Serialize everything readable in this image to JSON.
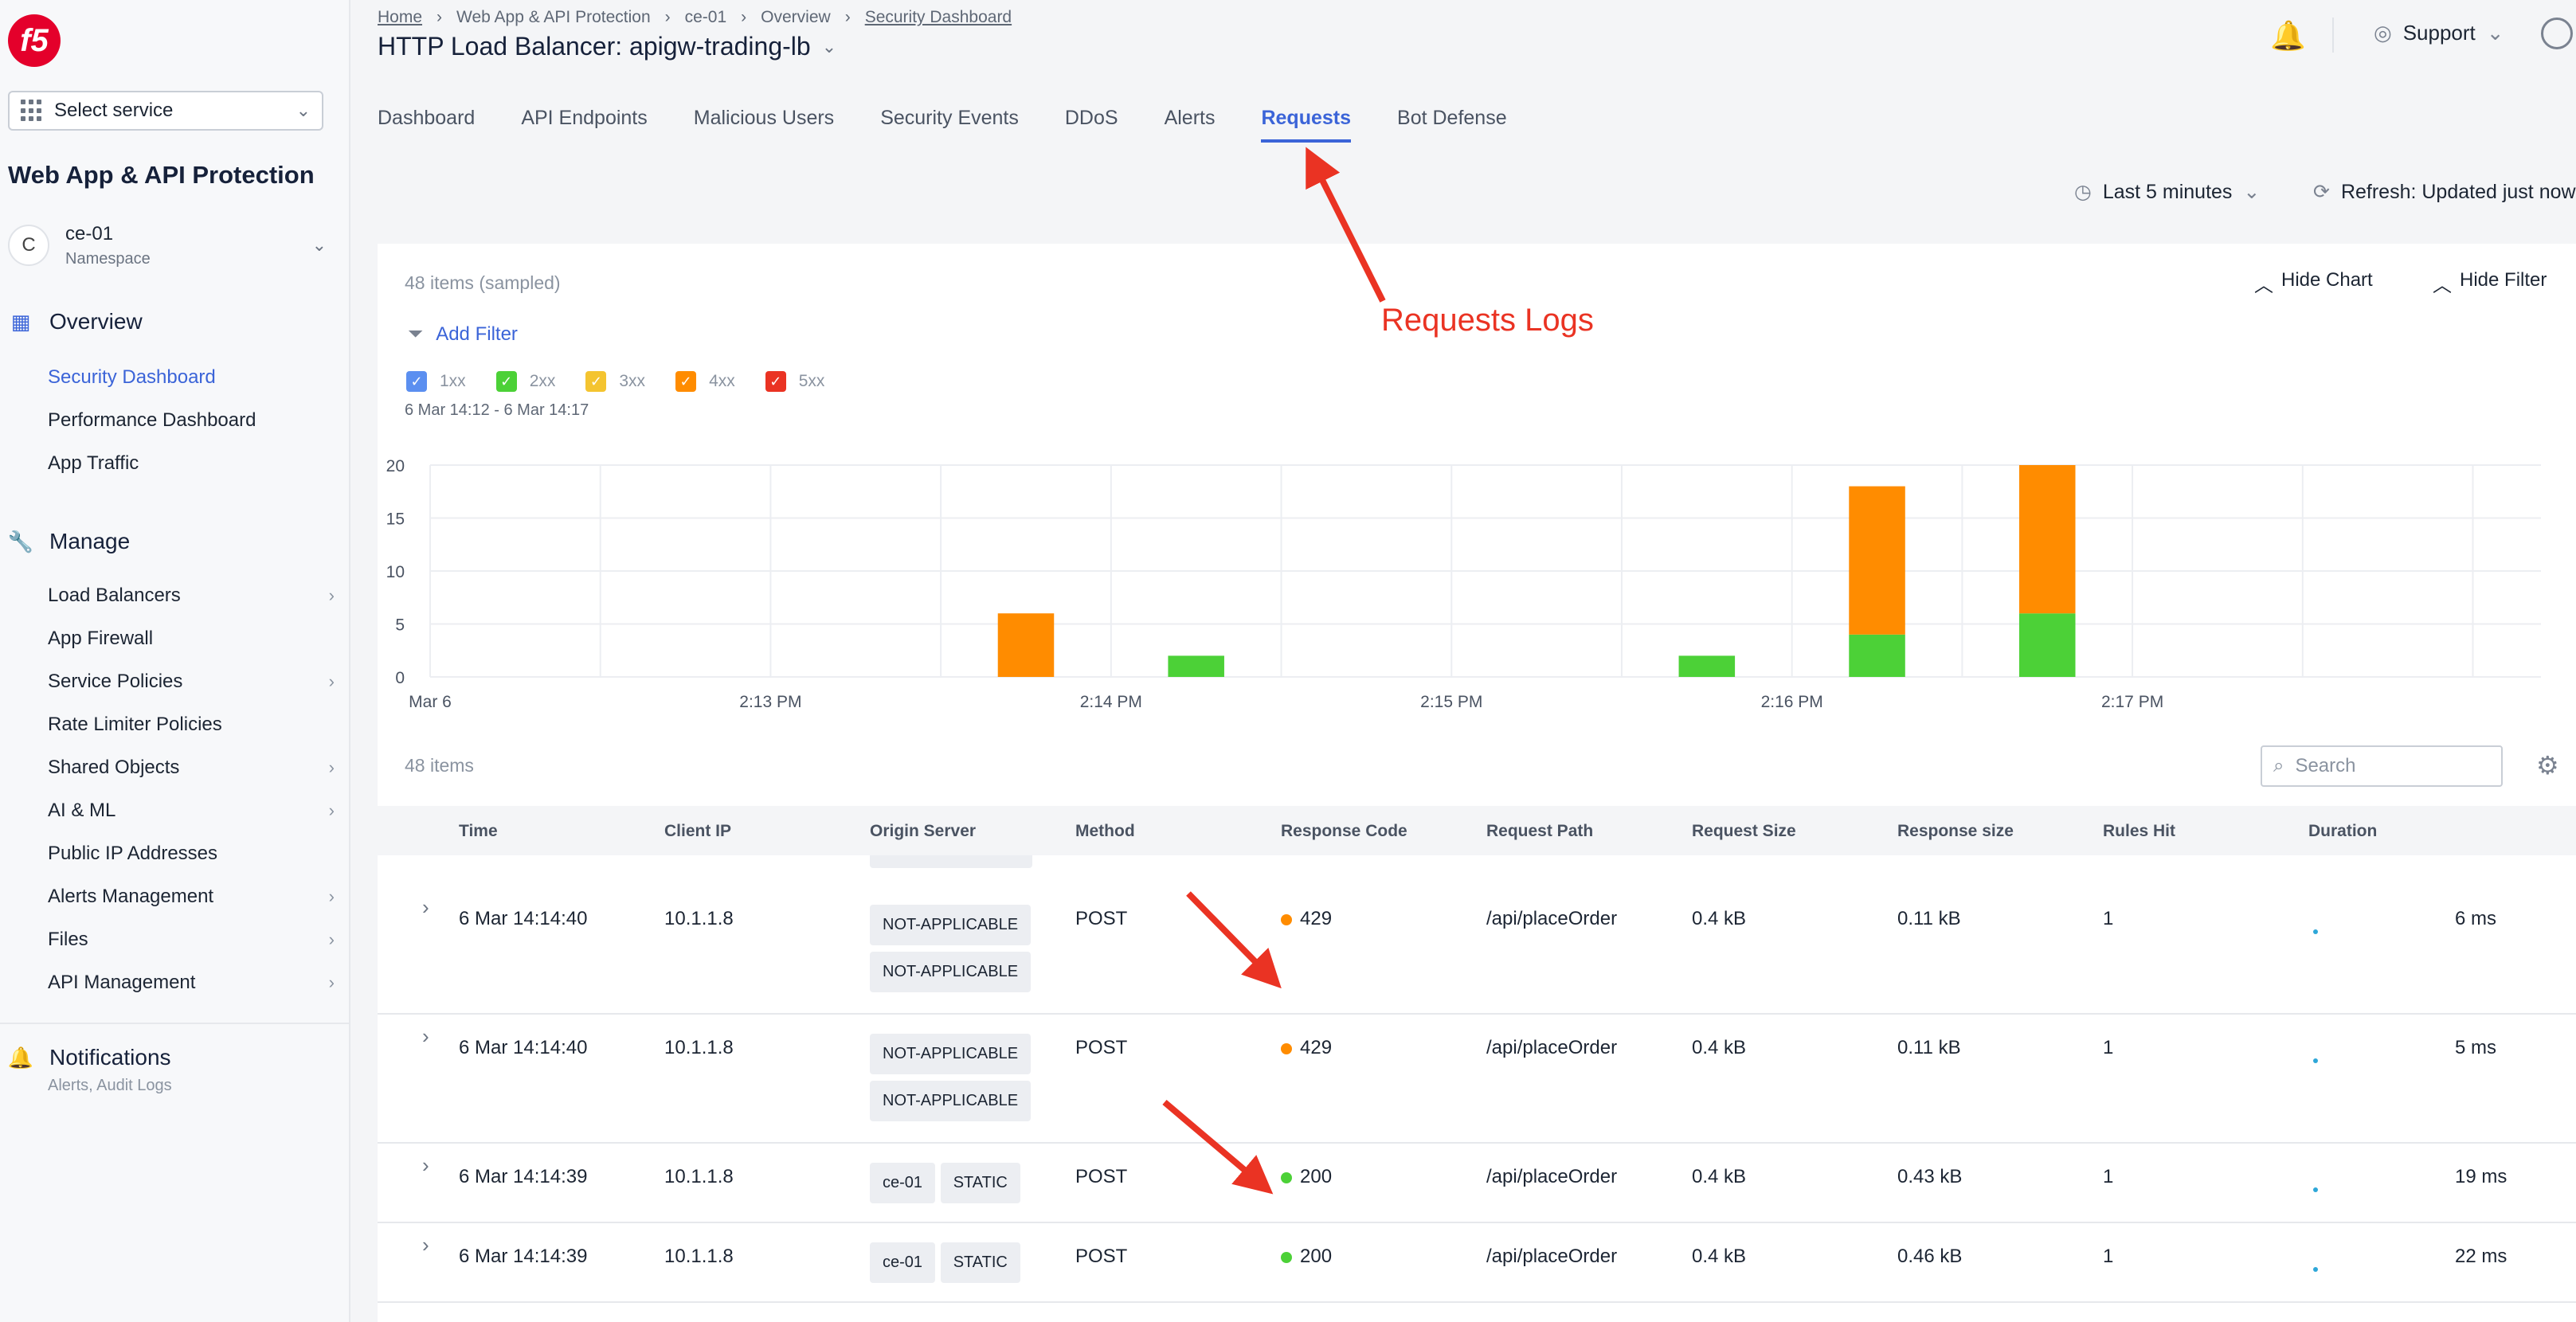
{
  "sidebar": {
    "logo": "f5",
    "select_service": "Select service",
    "app_title": "Web App & API Protection",
    "namespace": {
      "avatar": "C",
      "name": "ce-01",
      "label": "Namespace"
    },
    "overview": {
      "label": "Overview",
      "items": [
        "Security Dashboard",
        "Performance Dashboard",
        "App Traffic"
      ]
    },
    "manage": {
      "label": "Manage",
      "items": [
        "Load Balancers",
        "App Firewall",
        "Service Policies",
        "Rate Limiter Policies",
        "Shared Objects",
        "AI & ML",
        "Public IP Addresses",
        "Alerts Management",
        "Files",
        "API Management"
      ]
    },
    "notifications": {
      "label": "Notifications",
      "sub": "Alerts, Audit Logs"
    }
  },
  "header": {
    "breadcrumb": [
      "Home",
      "Web App & API Protection",
      "ce-01",
      "Overview",
      "Security Dashboard"
    ],
    "title": "HTTP Load Balancer: apigw-trading-lb",
    "support": "Support"
  },
  "tabs": [
    "Dashboard",
    "API Endpoints",
    "Malicious Users",
    "Security Events",
    "DDoS",
    "Alerts",
    "Requests",
    "Bot Defense"
  ],
  "active_tab": "Requests",
  "controls": {
    "time_range": "Last 5 minutes",
    "refresh": "Refresh: Updated just now"
  },
  "panel": {
    "sampled": "48 items (sampled)",
    "hide_chart": "Hide Chart",
    "hide_filter": "Hide Filter",
    "add_filter": "Add Filter",
    "legend": [
      {
        "label": "1xx",
        "color": "#5b8ff0"
      },
      {
        "label": "2xx",
        "color": "#4cd137"
      },
      {
        "label": "3xx",
        "color": "#f4c430"
      },
      {
        "label": "4xx",
        "color": "#ff8c00"
      },
      {
        "label": "5xx",
        "color": "#ea3323"
      }
    ],
    "date_range": "6 Mar 14:12 - 6 Mar 14:17",
    "items_count": "48 items",
    "search_placeholder": "Search"
  },
  "chart_data": {
    "type": "bar",
    "stacked": true,
    "ylim": [
      0,
      20
    ],
    "yticks": [
      0,
      5,
      10,
      15,
      20
    ],
    "xtick_labels": [
      "Mar 6",
      "2:13 PM",
      "2:14 PM",
      "2:15 PM",
      "2:16 PM",
      "2:17 PM"
    ],
    "series": [
      {
        "name": "2xx",
        "color": "#4cd137",
        "points": [
          {
            "slot": 4,
            "value": 0
          },
          {
            "slot": 5,
            "value": 2
          },
          {
            "slot": 8,
            "value": 2
          },
          {
            "slot": 9,
            "value": 4
          },
          {
            "slot": 10,
            "value": 6
          }
        ]
      },
      {
        "name": "4xx",
        "color": "#ff8c00",
        "points": [
          {
            "slot": 4,
            "value": 6
          },
          {
            "slot": 5,
            "value": 0
          },
          {
            "slot": 8,
            "value": 0
          },
          {
            "slot": 9,
            "value": 14
          },
          {
            "slot": 10,
            "value": 14
          }
        ]
      }
    ],
    "grid": true
  },
  "table": {
    "columns": [
      "Time",
      "Client IP",
      "Origin Server",
      "Method",
      "Response Code",
      "Request Path",
      "Request Size",
      "Response size",
      "Rules Hit",
      "Duration"
    ],
    "rows": [
      {
        "time": "6 Mar 14:14:40",
        "ip": "10.1.1.8",
        "origin": [
          "NOT-APPLICABLE",
          "NOT-APPLICABLE"
        ],
        "method": "POST",
        "code": "429",
        "code_color": "#ff8c00",
        "path": "/api/placeOrder",
        "req_size": "0.4 kB",
        "resp_size": "0.11 kB",
        "rules": "1",
        "duration": "6 ms"
      },
      {
        "time": "6 Mar 14:14:40",
        "ip": "10.1.1.8",
        "origin": [
          "NOT-APPLICABLE",
          "NOT-APPLICABLE"
        ],
        "method": "POST",
        "code": "429",
        "code_color": "#ff8c00",
        "path": "/api/placeOrder",
        "req_size": "0.4 kB",
        "resp_size": "0.11 kB",
        "rules": "1",
        "duration": "5 ms"
      },
      {
        "time": "6 Mar 14:14:39",
        "ip": "10.1.1.8",
        "origin": [
          "ce-01",
          "STATIC"
        ],
        "method": "POST",
        "code": "200",
        "code_color": "#4cd137",
        "path": "/api/placeOrder",
        "req_size": "0.4 kB",
        "resp_size": "0.43 kB",
        "rules": "1",
        "duration": "19 ms"
      },
      {
        "time": "6 Mar 14:14:39",
        "ip": "10.1.1.8",
        "origin": [
          "ce-01",
          "STATIC"
        ],
        "method": "POST",
        "code": "200",
        "code_color": "#4cd137",
        "path": "/api/placeOrder",
        "req_size": "0.4 kB",
        "resp_size": "0.46 kB",
        "rules": "1",
        "duration": "22 ms"
      }
    ]
  },
  "annotation": {
    "label": "Requests Logs",
    "color": "#ea3323"
  }
}
